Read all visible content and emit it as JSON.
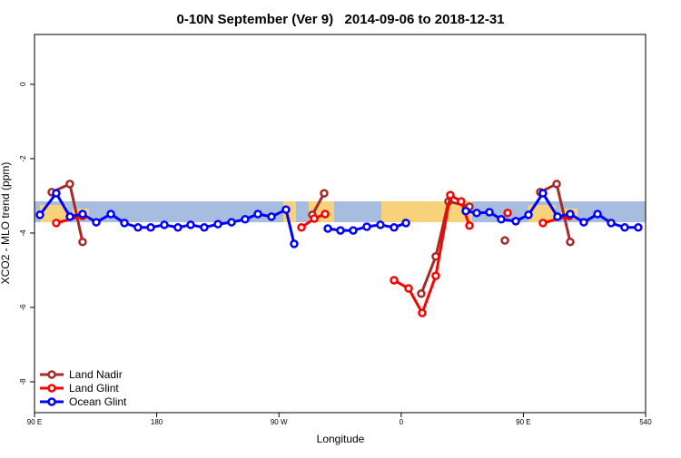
{
  "chart_data": {
    "type": "line",
    "title": "0-10N September (Ver 9)   2014-09-06 to 2018-12-31",
    "x_label": "Longitude",
    "y_label": "XCO2 - MLO trend (ppm)",
    "xlim": [
      90,
      540
    ],
    "xticks": [
      {
        "value": 90,
        "label": "90 E"
      },
      180,
      {
        "value": 270,
        "label": "90 W"
      },
      {
        "value": 360,
        "label": "0"
      },
      {
        "value": 450,
        "label": "90 E"
      },
      540
    ],
    "ylim": [
      -8.83,
      1.34
    ],
    "yticks": [
      0,
      -2,
      -4,
      -6,
      -8
    ],
    "legend": "bottomleft",
    "series": [
      {
        "name": "Land Nadir",
        "color": "#a52a2a",
        "x": [
          102.7,
          116.0,
          125.4,
          null,
          294.6,
          303.3,
          null,
          374.8,
          385.5,
          394.9,
          410.3,
          null,
          436.4,
          null,
          462.4,
          474.5,
          484.5
        ],
        "values": [
          -2.9,
          -2.68,
          -4.24,
          null,
          -3.51,
          -2.93,
          null,
          -5.63,
          -4.63,
          -3.15,
          -3.29,
          null,
          -4.2,
          null,
          -2.9,
          -2.68,
          -4.24
        ]
      },
      {
        "name": "Land Glint",
        "color": "#ff0000",
        "x": [
          106.0,
          125.4,
          null,
          286.6,
          296.0,
          304.0,
          null,
          354.8,
          365.5,
          375.5,
          385.5,
          396.2,
          404.2,
          410.3,
          null,
          438.4,
          null,
          464.4,
          483.8
        ],
        "values": [
          -3.73,
          -3.54,
          null,
          -3.85,
          -3.61,
          -3.49,
          null,
          -5.27,
          -5.49,
          -6.15,
          -5.15,
          -2.98,
          -3.15,
          -3.8,
          null,
          -3.46,
          null,
          -3.73,
          -3.54
        ]
      },
      {
        "name": "Ocean Glint",
        "color": "#0000ff",
        "x": [
          94.0,
          106.0,
          116.1,
          125.4,
          135.5,
          146.2,
          156.2,
          166.2,
          175.6,
          185.6,
          195.6,
          205.0,
          215.0,
          225.1,
          235.1,
          245.1,
          254.5,
          264.5,
          275.2,
          281.2,
          null,
          306.0,
          315.3,
          324.7,
          334.7,
          344.7,
          354.8,
          363.5,
          null,
          407.6,
          415.6,
          425.0,
          433.7,
          444.4,
          453.8,
          464.4,
          475.1,
          484.5,
          494.5,
          504.6,
          514.6,
          524.6,
          534.6
        ],
        "values": [
          -3.51,
          -2.93,
          -3.56,
          -3.49,
          -3.71,
          -3.49,
          -3.73,
          -3.85,
          -3.85,
          -3.78,
          -3.85,
          -3.78,
          -3.85,
          -3.76,
          -3.71,
          -3.63,
          -3.49,
          -3.56,
          -3.37,
          -4.29,
          null,
          -3.88,
          -3.93,
          -3.93,
          -3.83,
          -3.78,
          -3.85,
          -3.73,
          null,
          -3.41,
          -3.46,
          -3.44,
          -3.63,
          -3.68,
          -3.51,
          -2.93,
          -3.56,
          -3.49,
          -3.71,
          -3.49,
          -3.73,
          -3.85,
          -3.85
        ]
      }
    ]
  }
}
